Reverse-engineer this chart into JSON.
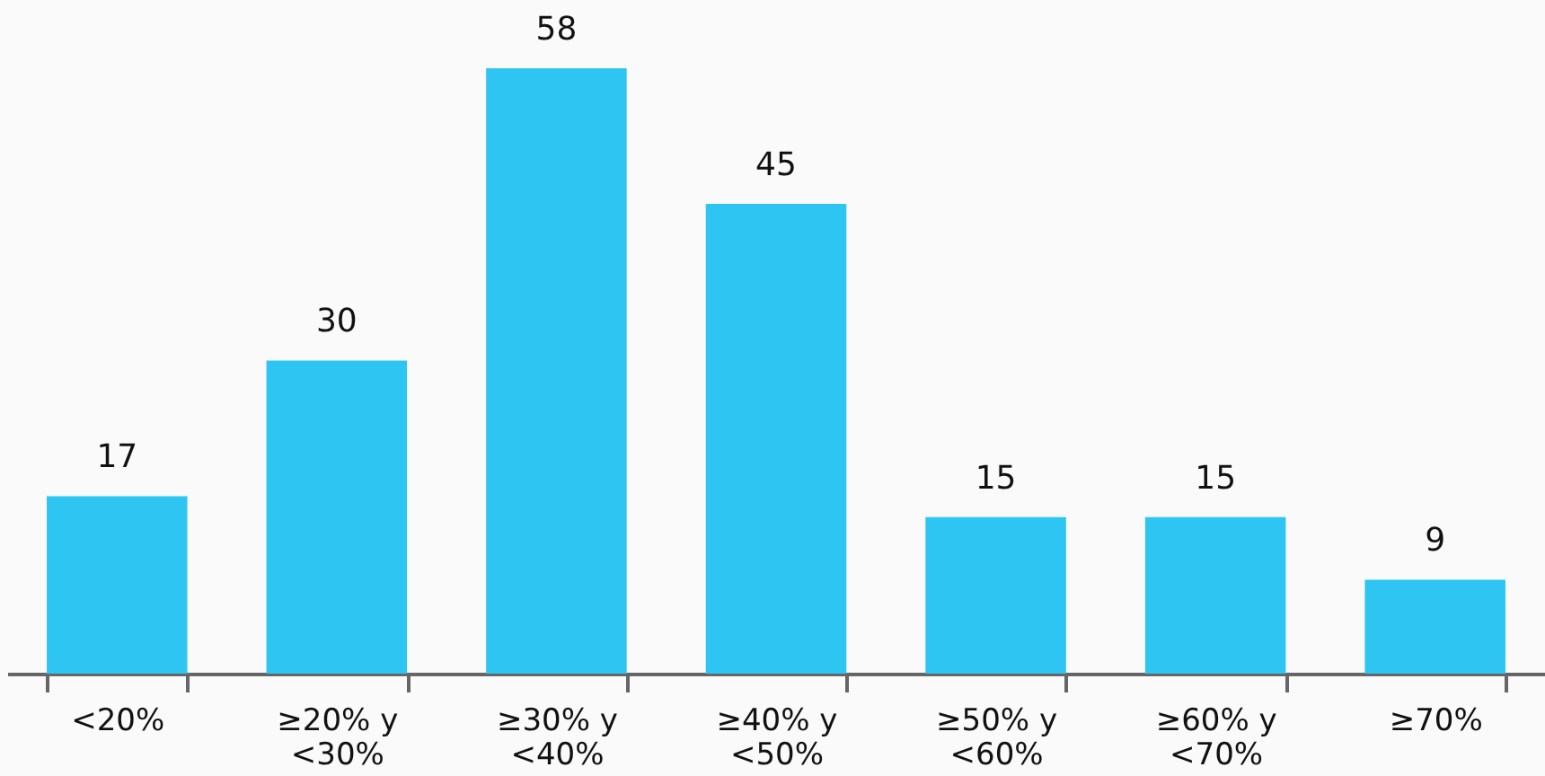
{
  "chart_data": {
    "type": "bar",
    "categories": [
      "<20%",
      "≥20% y <30%",
      "≥30% y <40%",
      "≥40% y <50%",
      "≥50% y <60%",
      "≥60% y <70%",
      "≥70%"
    ],
    "values": [
      17,
      30,
      58,
      45,
      15,
      15,
      9
    ],
    "color": "#2ec5f3",
    "data_labels": true
  }
}
